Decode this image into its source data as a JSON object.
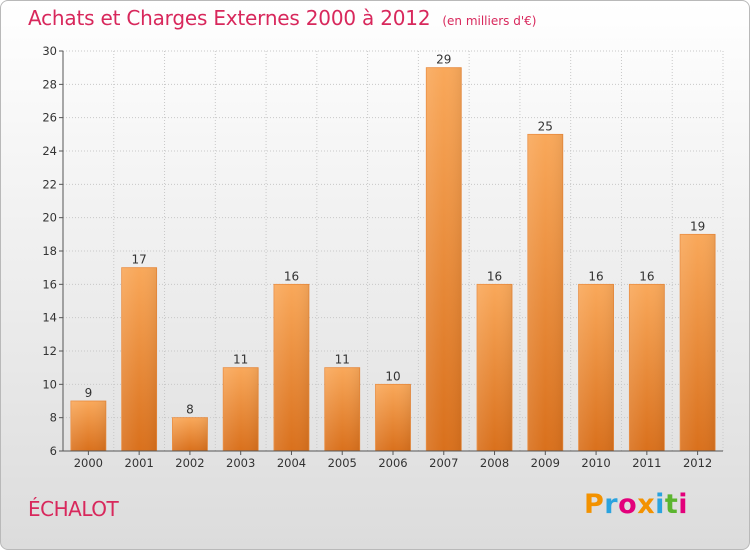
{
  "title": "Achats et Charges Externes 2000 à 2012",
  "subtitle": "(en milliers d'€)",
  "commune": "ÉCHALOT",
  "logo": {
    "text": "Proxiti",
    "colors": [
      "#f39200",
      "#2aa3df",
      "#e3007b",
      "#f39200",
      "#2aa3df",
      "#5bb52f",
      "#e3007b"
    ]
  },
  "colors": {
    "title": "#d8285c",
    "bar_light": "#f9a85a",
    "bar_dark": "#d9701c"
  },
  "chart_data": {
    "type": "bar",
    "categories": [
      "2000",
      "2001",
      "2002",
      "2003",
      "2004",
      "2005",
      "2006",
      "2007",
      "2008",
      "2009",
      "2010",
      "2011",
      "2012"
    ],
    "values": [
      9,
      17,
      8,
      11,
      16,
      11,
      10,
      29,
      16,
      25,
      16,
      16,
      19
    ],
    "ylim": [
      6,
      30
    ],
    "yticks": [
      6,
      8,
      10,
      12,
      14,
      16,
      18,
      20,
      22,
      24,
      26,
      28,
      30
    ],
    "grid": true
  }
}
